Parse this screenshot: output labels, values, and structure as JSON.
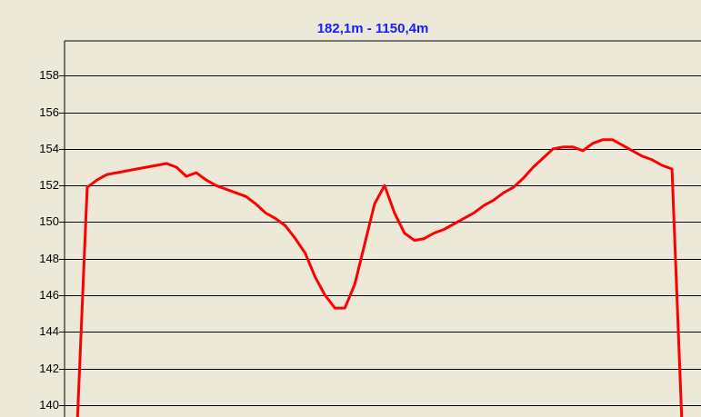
{
  "chart_data": {
    "type": "line",
    "title": "182,1m - 1150,4m",
    "series": [
      {
        "color": "#ff0000",
        "values": [
          139,
          151.9,
          152.3,
          152.6,
          152.7,
          152.8,
          152.9,
          153.0,
          153.1,
          153.2,
          153.0,
          152.5,
          152.7,
          152.3,
          152.0,
          151.8,
          151.6,
          151.4,
          151.0,
          150.5,
          150.2,
          149.8,
          149.1,
          148.3,
          147.0,
          146.0,
          145.3,
          145.3,
          146.6,
          148.8,
          151.0,
          152.0,
          150.5,
          149.4,
          149.0,
          149.1,
          149.4,
          149.6,
          149.9,
          150.2,
          150.5,
          150.9,
          151.2,
          151.6,
          151.9,
          152.4,
          153.0,
          153.5,
          154.0,
          154.1,
          154.1,
          153.9,
          154.3,
          154.5,
          154.5,
          154.2,
          153.9,
          153.6,
          153.4,
          153.1,
          152.9,
          139
        ]
      }
    ],
    "ylim": [
      139.35,
      159.9
    ],
    "yticks": [
      140,
      142,
      144,
      146,
      148,
      150,
      152,
      154,
      156,
      158
    ],
    "grid": true
  }
}
